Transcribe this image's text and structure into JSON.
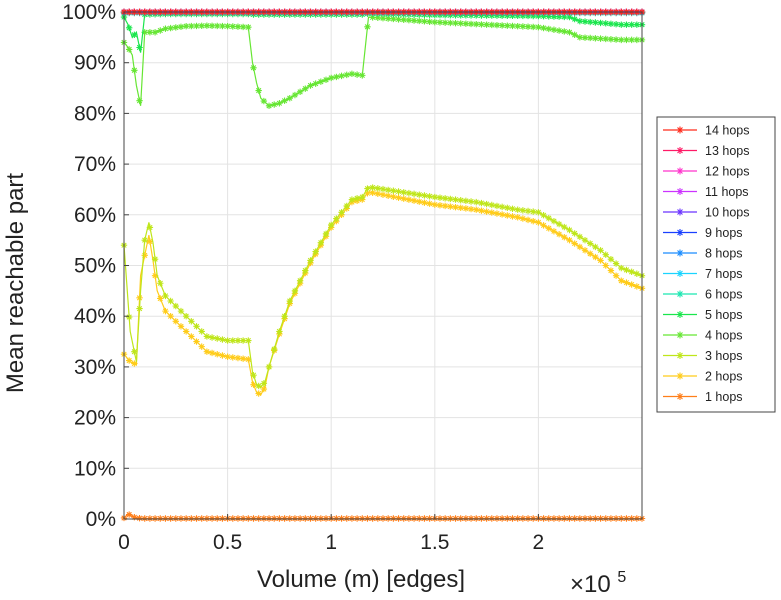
{
  "chart_data": {
    "type": "line",
    "title": "",
    "xlabel": "Volume (m) [edges]",
    "ylabel": "Mean reachable part",
    "x_multiplier_label": "×10",
    "x_multiplier_exponent": "5",
    "xlim": [
      0,
      250000
    ],
    "ylim": [
      0,
      100
    ],
    "x_ticks": [
      0,
      50000,
      100000,
      150000,
      200000
    ],
    "x_tick_labels": [
      "0",
      "0.5",
      "1",
      "1.5",
      "2"
    ],
    "y_ticks": [
      0,
      10,
      20,
      30,
      40,
      50,
      60,
      70,
      80,
      90,
      100
    ],
    "y_tick_labels": [
      "0%",
      "10%",
      "20%",
      "30%",
      "40%",
      "50%",
      "60%",
      "70%",
      "80%",
      "90%",
      "100%"
    ],
    "grid": true,
    "legend_position": "right",
    "marker": "asterisk",
    "series": [
      {
        "name": "14 hops",
        "color": "#ff2a1a",
        "values": [
          [
            0,
            100
          ],
          [
            250000,
            100
          ]
        ]
      },
      {
        "name": "13 hops",
        "color": "#ff1a66",
        "values": [
          [
            0,
            100
          ],
          [
            250000,
            100
          ]
        ]
      },
      {
        "name": "12 hops",
        "color": "#ff33cc",
        "values": [
          [
            0,
            100
          ],
          [
            250000,
            100
          ]
        ]
      },
      {
        "name": "11 hops",
        "color": "#cc33ff",
        "values": [
          [
            0,
            100
          ],
          [
            250000,
            100
          ]
        ]
      },
      {
        "name": "10 hops",
        "color": "#6a33ff",
        "values": [
          [
            0,
            100
          ],
          [
            250000,
            100
          ]
        ]
      },
      {
        "name": "9 hops",
        "color": "#1a40ff",
        "values": [
          [
            0,
            100
          ],
          [
            250000,
            100
          ]
        ]
      },
      {
        "name": "8 hops",
        "color": "#1a8cff",
        "values": [
          [
            0,
            100
          ],
          [
            250000,
            100
          ]
        ]
      },
      {
        "name": "7 hops",
        "color": "#1ad4ff",
        "values": [
          [
            0,
            100
          ],
          [
            250000,
            100
          ]
        ]
      },
      {
        "name": "6 hops",
        "color": "#1ae6b0",
        "values": [
          [
            0,
            99.8
          ],
          [
            250000,
            99.8
          ]
        ]
      },
      {
        "name": "5 hops",
        "color": "#1ae64d",
        "values": [
          [
            0,
            99
          ],
          [
            2000,
            97.5
          ],
          [
            4000,
            95
          ],
          [
            6000,
            96
          ],
          [
            8000,
            92
          ],
          [
            10000,
            99.5
          ],
          [
            20000,
            99.6
          ],
          [
            60000,
            99.6
          ],
          [
            62000,
            99.5
          ],
          [
            115000,
            99.5
          ],
          [
            118000,
            99.7
          ],
          [
            150000,
            99.4
          ],
          [
            200000,
            99.2
          ],
          [
            215000,
            99
          ],
          [
            220000,
            98.2
          ],
          [
            240000,
            97.5
          ],
          [
            250000,
            97.5
          ]
        ]
      },
      {
        "name": "4 hops",
        "color": "#66e633",
        "values": [
          [
            0,
            94
          ],
          [
            2000,
            93
          ],
          [
            4000,
            91.5
          ],
          [
            6000,
            85.5
          ],
          [
            8000,
            81.5
          ],
          [
            10000,
            96
          ],
          [
            15000,
            96
          ],
          [
            20000,
            96.7
          ],
          [
            30000,
            97.2
          ],
          [
            40000,
            97.3
          ],
          [
            50000,
            97.2
          ],
          [
            60000,
            97
          ],
          [
            62000,
            90
          ],
          [
            64000,
            86
          ],
          [
            66000,
            83
          ],
          [
            70000,
            81.5
          ],
          [
            75000,
            82
          ],
          [
            80000,
            83
          ],
          [
            90000,
            85.5
          ],
          [
            100000,
            87
          ],
          [
            110000,
            87.8
          ],
          [
            115000,
            87.5
          ],
          [
            118000,
            99
          ],
          [
            150000,
            98
          ],
          [
            200000,
            97
          ],
          [
            215000,
            96
          ],
          [
            220000,
            95
          ],
          [
            240000,
            94.5
          ],
          [
            250000,
            94.5
          ]
        ]
      },
      {
        "name": "3 hops",
        "color": "#bfe61a",
        "values": [
          [
            0,
            54
          ],
          [
            3000,
            37
          ],
          [
            6000,
            31
          ],
          [
            8000,
            45
          ],
          [
            10000,
            55
          ],
          [
            12000,
            58.5
          ],
          [
            14000,
            54.5
          ],
          [
            16000,
            48
          ],
          [
            20000,
            44
          ],
          [
            30000,
            40
          ],
          [
            40000,
            36
          ],
          [
            50000,
            35.2
          ],
          [
            60000,
            35.2
          ],
          [
            62000,
            29
          ],
          [
            64000,
            26.5
          ],
          [
            66000,
            26
          ],
          [
            68000,
            27
          ],
          [
            70000,
            30
          ],
          [
            75000,
            37
          ],
          [
            80000,
            43
          ],
          [
            90000,
            51
          ],
          [
            100000,
            58
          ],
          [
            110000,
            63
          ],
          [
            115000,
            63.5
          ],
          [
            118000,
            65.5
          ],
          [
            150000,
            63.5
          ],
          [
            170000,
            62.5
          ],
          [
            190000,
            61
          ],
          [
            200000,
            60.5
          ],
          [
            215000,
            57
          ],
          [
            230000,
            53
          ],
          [
            240000,
            49.5
          ],
          [
            250000,
            48
          ]
        ]
      },
      {
        "name": "2 hops",
        "color": "#ffcc1a",
        "values": [
          [
            0,
            32.5
          ],
          [
            3000,
            31
          ],
          [
            6000,
            30.5
          ],
          [
            8000,
            48
          ],
          [
            10000,
            52
          ],
          [
            12000,
            56
          ],
          [
            14000,
            51
          ],
          [
            16000,
            45
          ],
          [
            20000,
            41
          ],
          [
            30000,
            37
          ],
          [
            40000,
            33
          ],
          [
            50000,
            32
          ],
          [
            60000,
            31.5
          ],
          [
            62000,
            27
          ],
          [
            64000,
            25
          ],
          [
            66000,
            24.5
          ],
          [
            68000,
            26
          ],
          [
            70000,
            30
          ],
          [
            75000,
            36.5
          ],
          [
            80000,
            42.5
          ],
          [
            90000,
            50.5
          ],
          [
            100000,
            57.5
          ],
          [
            110000,
            62.5
          ],
          [
            115000,
            63
          ],
          [
            118000,
            64.5
          ],
          [
            150000,
            62
          ],
          [
            170000,
            61
          ],
          [
            190000,
            59.5
          ],
          [
            200000,
            58.5
          ],
          [
            215000,
            55
          ],
          [
            230000,
            51
          ],
          [
            240000,
            47
          ],
          [
            250000,
            45.5
          ]
        ]
      },
      {
        "name": "1 hops",
        "color": "#ff7f1a",
        "values": [
          [
            0,
            0.2
          ],
          [
            2000,
            1
          ],
          [
            4000,
            0.5
          ],
          [
            6000,
            0.2
          ],
          [
            10000,
            0.1
          ],
          [
            250000,
            0.1
          ]
        ]
      }
    ]
  }
}
